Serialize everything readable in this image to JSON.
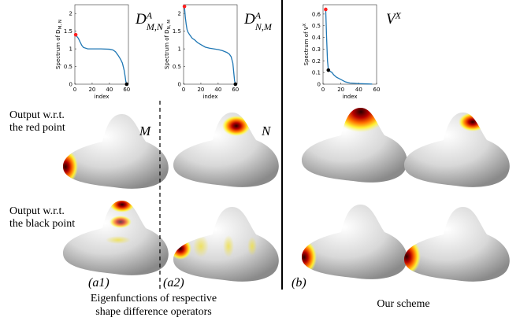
{
  "chart_data": [
    {
      "type": "line",
      "title": {
        "base": "D",
        "sup": "A",
        "sub": "M,N"
      },
      "ylabel": {
        "base": "Spectrum of D",
        "sub": "M, N"
      },
      "xlabel": "index",
      "x": [
        1,
        2,
        4,
        6,
        8,
        10,
        15,
        20,
        30,
        40,
        44,
        47,
        50,
        53,
        55,
        57,
        58,
        59,
        60
      ],
      "series": [
        {
          "color": "#1f77b4",
          "values": [
            1.4,
            1.36,
            1.3,
            1.2,
            1.1,
            1.04,
            1.0,
            1.0,
            1.0,
            0.99,
            0.97,
            0.92,
            0.82,
            0.7,
            0.6,
            0.4,
            0.25,
            0.08,
            0.0
          ]
        }
      ],
      "points": [
        {
          "x": 1,
          "y": 1.4,
          "color": "#ff2020"
        },
        {
          "x": 60,
          "y": 0.0,
          "color": "#000000"
        }
      ],
      "xlim": [
        0,
        62
      ],
      "xticks": [
        0,
        20,
        40,
        60
      ],
      "ylim": [
        0,
        2.25
      ],
      "yticks": [
        0,
        0.5,
        1,
        1.5,
        2
      ]
    },
    {
      "type": "line",
      "title": {
        "base": "D",
        "sup": "A",
        "sub": "N,M"
      },
      "ylabel": {
        "base": "Spectrum of D",
        "sub": "N, M"
      },
      "xlabel": "index",
      "x": [
        1,
        2,
        3,
        4,
        5,
        7,
        10,
        13,
        16,
        20,
        25,
        30,
        35,
        40,
        45,
        50,
        53,
        55,
        57,
        58,
        59,
        60
      ],
      "series": [
        {
          "color": "#1f77b4",
          "values": [
            2.2,
            1.9,
            1.7,
            1.55,
            1.48,
            1.4,
            1.3,
            1.25,
            1.18,
            1.12,
            1.05,
            1.02,
            1.0,
            0.98,
            0.95,
            0.9,
            0.85,
            0.78,
            0.6,
            0.35,
            0.1,
            0.0
          ]
        }
      ],
      "points": [
        {
          "x": 1,
          "y": 2.2,
          "color": "#ff2020"
        },
        {
          "x": 60,
          "y": 0.0,
          "color": "#000000"
        }
      ],
      "xlim": [
        0,
        62
      ],
      "xticks": [
        0,
        20,
        40,
        60
      ],
      "ylim": [
        0,
        2.25
      ],
      "yticks": [
        0,
        0.5,
        1,
        1.5,
        2
      ]
    },
    {
      "type": "line",
      "title": {
        "base": "V",
        "sup": "X"
      },
      "ylabel": {
        "base": "Spectrum of V",
        "sup": "X"
      },
      "xlabel": "index",
      "x": [
        3,
        4,
        5,
        6,
        8,
        10,
        12,
        15,
        20,
        25,
        30,
        40,
        50,
        55
      ],
      "series": [
        {
          "color": "#1f77b4",
          "values": [
            0.64,
            0.4,
            0.2,
            0.12,
            0.11,
            0.1,
            0.08,
            0.06,
            0.04,
            0.02,
            0.01,
            0.005,
            0.002,
            0.001
          ]
        }
      ],
      "points": [
        {
          "x": 3,
          "y": 0.64,
          "color": "#ff2020"
        },
        {
          "x": 6,
          "y": 0.12,
          "color": "#000000"
        }
      ],
      "xlim": [
        0,
        60
      ],
      "xticks": [
        0,
        20,
        40,
        60
      ],
      "ylim": [
        0,
        0.68
      ],
      "yticks": [
        0,
        0.1,
        0.2,
        0.3,
        0.4,
        0.5,
        0.6
      ]
    }
  ],
  "labels": {
    "red_point": [
      "Output w.r.t.",
      "the red point"
    ],
    "black_point": [
      "Output w.r.t.",
      "the black point"
    ],
    "shape_m": "M",
    "shape_n": "N",
    "a1": "(a1)",
    "a2": "(a2)",
    "b": "(b)",
    "caption_a": [
      "Eigenfunctions of respective",
      "shape difference operators"
    ],
    "caption_b": "Our scheme"
  }
}
